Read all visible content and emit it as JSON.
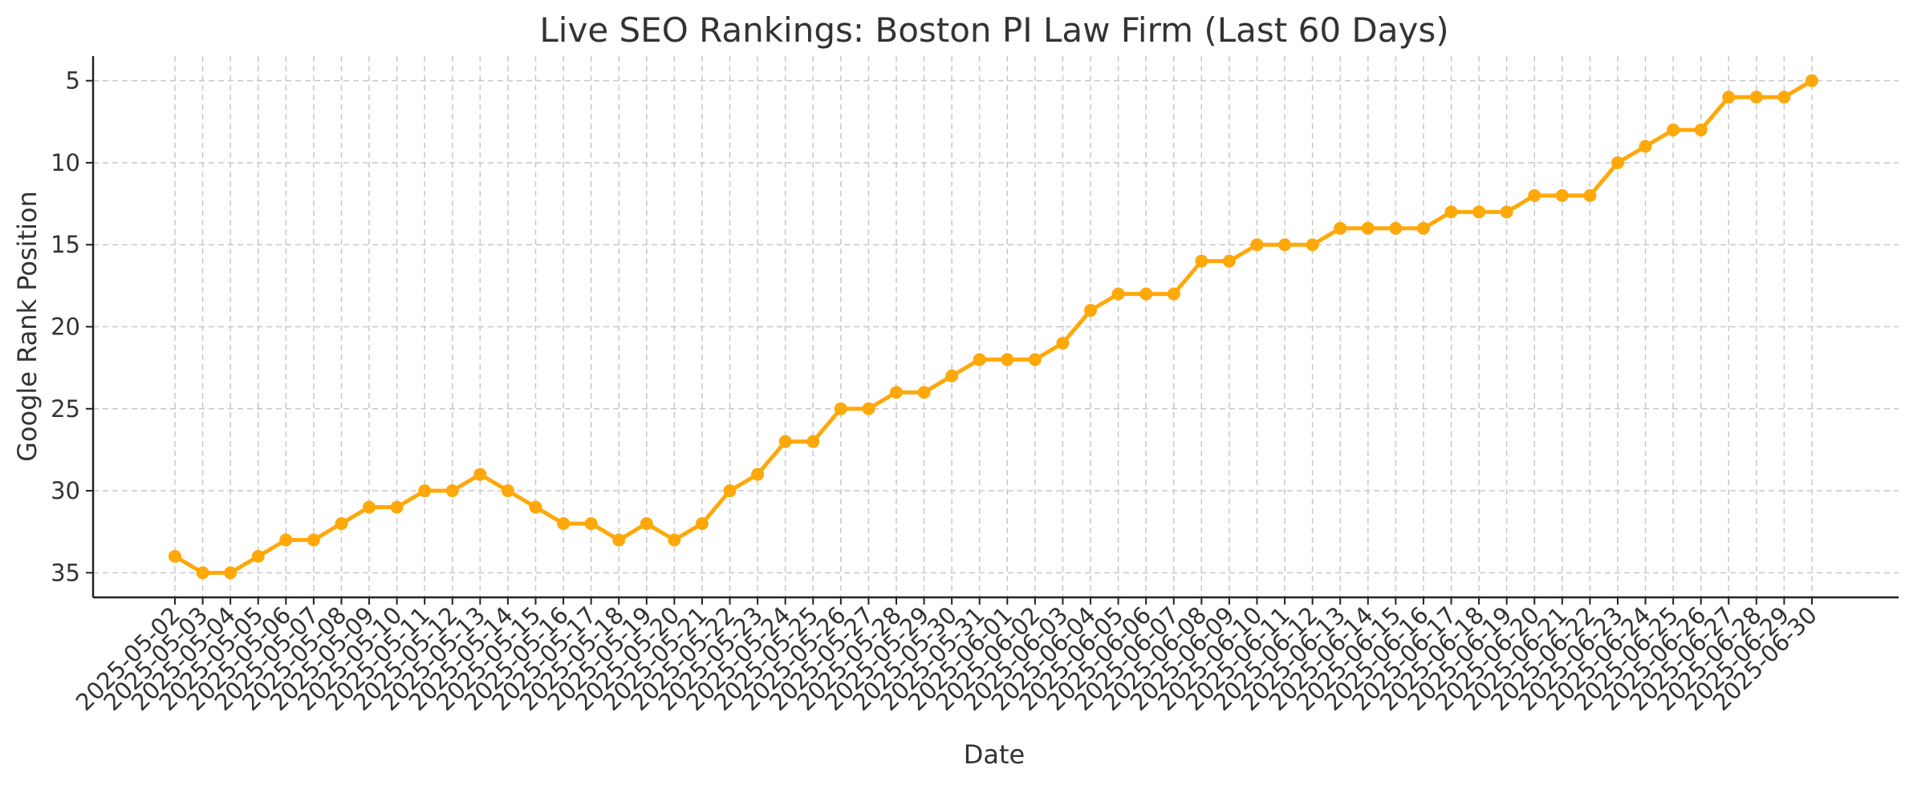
{
  "chart_data": {
    "type": "line",
    "title": "Live SEO Rankings: Boston PI Law Firm (Last 60 Days)",
    "xlabel": "Date",
    "ylabel": "Google Rank Position",
    "y_axis_inverted": true,
    "ylim": [
      36.5,
      3.5
    ],
    "yticks": [
      5,
      10,
      15,
      20,
      25,
      30,
      35
    ],
    "grid": true,
    "legend": "none",
    "line_color": "#FFA80A",
    "x": [
      "2025-05-02",
      "2025-05-03",
      "2025-05-04",
      "2025-05-05",
      "2025-05-06",
      "2025-05-07",
      "2025-05-08",
      "2025-05-09",
      "2025-05-10",
      "2025-05-11",
      "2025-05-12",
      "2025-05-13",
      "2025-05-14",
      "2025-05-15",
      "2025-05-16",
      "2025-05-17",
      "2025-05-18",
      "2025-05-19",
      "2025-05-20",
      "2025-05-21",
      "2025-05-22",
      "2025-05-23",
      "2025-05-24",
      "2025-05-25",
      "2025-05-26",
      "2025-05-27",
      "2025-05-28",
      "2025-05-29",
      "2025-05-30",
      "2025-05-31",
      "2025-06-01",
      "2025-06-02",
      "2025-06-03",
      "2025-06-04",
      "2025-06-05",
      "2025-06-06",
      "2025-06-07",
      "2025-06-08",
      "2025-06-09",
      "2025-06-10",
      "2025-06-11",
      "2025-06-12",
      "2025-06-13",
      "2025-06-14",
      "2025-06-15",
      "2025-06-16",
      "2025-06-17",
      "2025-06-18",
      "2025-06-19",
      "2025-06-20",
      "2025-06-21",
      "2025-06-22",
      "2025-06-23",
      "2025-06-24",
      "2025-06-25",
      "2025-06-26",
      "2025-06-27",
      "2025-06-28",
      "2025-06-29",
      "2025-06-30"
    ],
    "series": [
      {
        "values": [
          34,
          35,
          35,
          34,
          33,
          33,
          32,
          31,
          31,
          30,
          30,
          29,
          30,
          31,
          32,
          32,
          33,
          32,
          33,
          32,
          30,
          29,
          27,
          27,
          25,
          25,
          24,
          24,
          23,
          22,
          22,
          22,
          21,
          19,
          18,
          18,
          18,
          16,
          16,
          15,
          15,
          15,
          14,
          14,
          14,
          14,
          13,
          13,
          13,
          12,
          12,
          12,
          10,
          9,
          8,
          8,
          6,
          6,
          6,
          5
        ]
      }
    ]
  }
}
